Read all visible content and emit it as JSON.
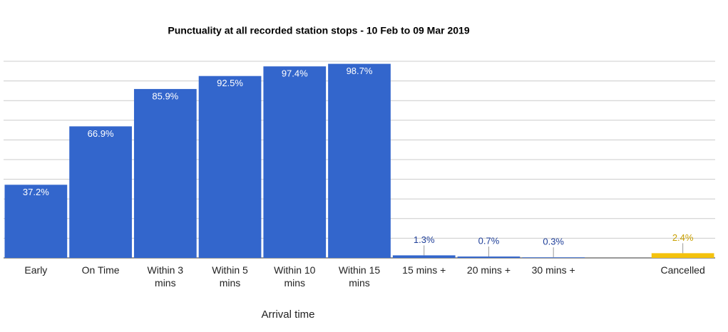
{
  "chart_data": {
    "type": "bar",
    "title": "Punctuality at all recorded station stops - 10 Feb to 09 Mar 2019",
    "x_label": "Arrival time",
    "categories": [
      "Early",
      "On Time",
      "Within 3 mins",
      "Within 5 mins",
      "Within 10 mins",
      "Within 15 mins",
      "15 mins +",
      "20 mins +",
      "30 mins +",
      null,
      "Cancelled"
    ],
    "values": [
      37.2,
      66.9,
      85.9,
      92.5,
      97.4,
      98.7,
      1.3,
      0.7,
      0.3,
      null,
      2.4
    ],
    "value_labels": [
      "37.2%",
      "66.9%",
      "85.9%",
      "92.5%",
      "97.4%",
      "98.7%",
      "1.3%",
      "0.7%",
      "0.3%",
      null,
      "2.4%"
    ],
    "colors": [
      "#3366cc",
      "#3366cc",
      "#3366cc",
      "#3366cc",
      "#3366cc",
      "#3366cc",
      "#3366cc",
      "#3366cc",
      "#3366cc",
      null,
      "#f4c20d"
    ],
    "ylim": [
      0,
      100
    ],
    "yticks": [
      0,
      10,
      20,
      30,
      40,
      50,
      60,
      70,
      80,
      90,
      100
    ],
    "grid": true
  }
}
